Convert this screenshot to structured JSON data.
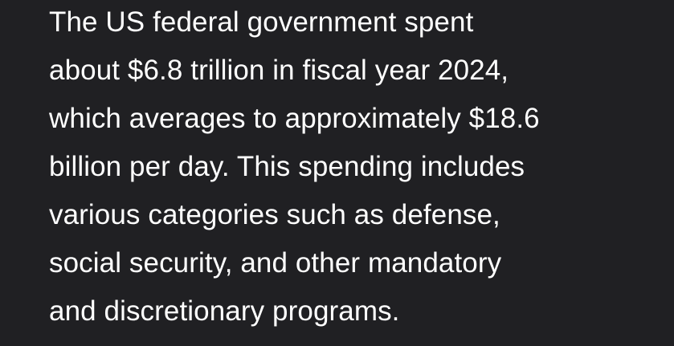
{
  "message": {
    "lines": [
      "The US federal government spent",
      "about $6.8 trillion in fiscal year 2024,",
      "which averages to approximately $18.6",
      "billion per day. This spending includes",
      "various categories such as defense,",
      "social security, and other mandatory",
      "and discretionary programs."
    ]
  },
  "colors": {
    "background": "#202023",
    "text": "#ffffff"
  }
}
